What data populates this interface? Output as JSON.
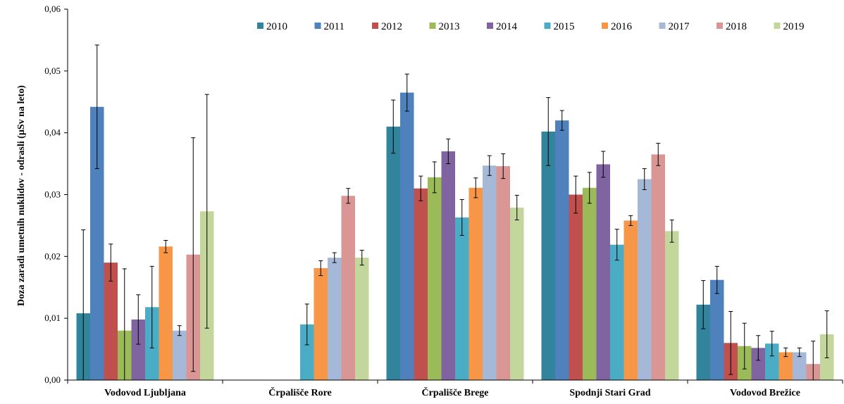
{
  "chart_data": {
    "type": "bar",
    "title": "",
    "xlabel": "",
    "ylabel": "Doza zaradi umetnih nuklidov  - odrasli  (µSv na leto)",
    "ylim": [
      0,
      0.06
    ],
    "yticks": [
      "0,00",
      "0,01",
      "0,02",
      "0,03",
      "0,04",
      "0,05",
      "0,06"
    ],
    "grid": false,
    "legend_position": "top",
    "categories": [
      "Vodovod Ljubljana",
      "Črpališče Rore",
      "Črpališče Brege",
      "Spodnji Stari Grad",
      "Vodovod Brežice"
    ],
    "series": [
      {
        "name": "2010",
        "color": "#31849B",
        "values": [
          0.0108,
          null,
          0.041,
          0.0402,
          0.0122
        ],
        "errors": [
          0.0135,
          null,
          0.0043,
          0.0055,
          0.0039
        ]
      },
      {
        "name": "2011",
        "color": "#4F81BD",
        "values": [
          0.0442,
          null,
          0.0465,
          0.042,
          0.0162
        ],
        "errors": [
          0.01,
          null,
          0.003,
          0.0016,
          0.0022
        ]
      },
      {
        "name": "2012",
        "color": "#C0504D",
        "values": [
          0.019,
          null,
          0.031,
          0.03,
          0.006
        ],
        "errors": [
          0.003,
          null,
          0.002,
          0.003,
          0.0051
        ]
      },
      {
        "name": "2013",
        "color": "#9BBB59",
        "values": [
          0.008,
          null,
          0.0328,
          0.0311,
          0.0055
        ],
        "errors": [
          0.01,
          null,
          0.0025,
          0.0025,
          0.0037
        ]
      },
      {
        "name": "2014",
        "color": "#8064A2",
        "values": [
          0.0098,
          null,
          0.037,
          0.0349,
          0.0052
        ],
        "errors": [
          0.004,
          null,
          0.002,
          0.0021,
          0.002
        ]
      },
      {
        "name": "2015",
        "color": "#4BACC6",
        "values": [
          0.0118,
          0.009,
          0.0263,
          0.0219,
          0.0059
        ],
        "errors": [
          0.0066,
          0.0033,
          0.0029,
          0.0025,
          0.002
        ]
      },
      {
        "name": "2016",
        "color": "#F79646",
        "values": [
          0.0216,
          0.0181,
          0.0311,
          0.0258,
          0.0045
        ],
        "errors": [
          0.001,
          0.0012,
          0.0016,
          0.0008,
          0.0007
        ]
      },
      {
        "name": "2017",
        "color": "#A6B8D8",
        "values": [
          0.008,
          0.0198,
          0.0347,
          0.0325,
          0.0045
        ],
        "errors": [
          0.0008,
          0.0008,
          0.0016,
          0.0017,
          0.0007
        ]
      },
      {
        "name": "2018",
        "color": "#DA9694",
        "values": [
          0.0203,
          0.0298,
          0.0346,
          0.0365,
          0.0026
        ],
        "errors": [
          0.0189,
          0.0012,
          0.002,
          0.0018,
          0.0037
        ]
      },
      {
        "name": "2019",
        "color": "#C3D69B",
        "values": [
          0.0273,
          0.0198,
          0.0279,
          0.0241,
          0.0074
        ],
        "errors": [
          0.0189,
          0.0012,
          0.002,
          0.0018,
          0.0038
        ]
      }
    ]
  }
}
